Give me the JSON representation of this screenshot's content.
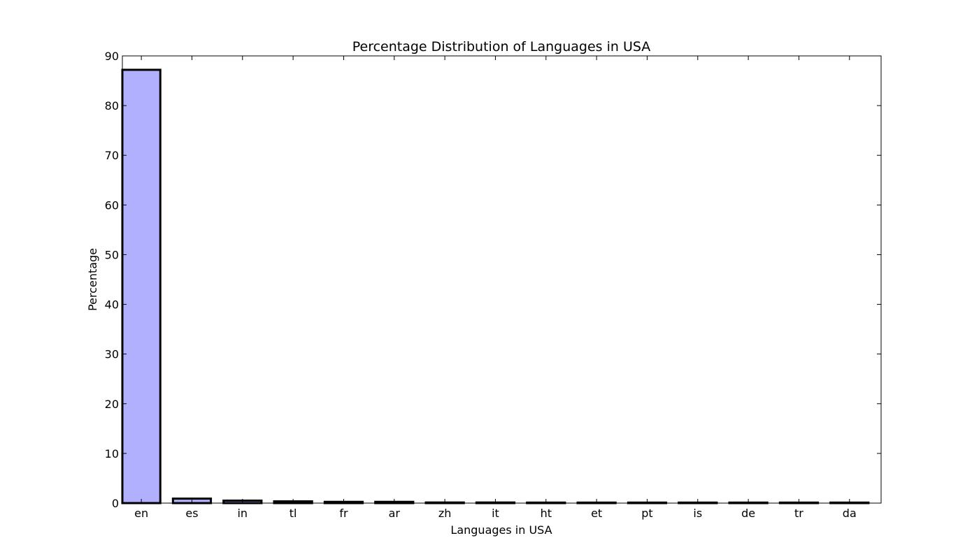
{
  "chart_data": {
    "type": "bar",
    "title": "Percentage Distribution of Languages in USA",
    "xlabel": "Languages in USA",
    "ylabel": "Percentage",
    "categories": [
      "en",
      "es",
      "in",
      "tl",
      "fr",
      "ar",
      "zh",
      "it",
      "ht",
      "et",
      "pt",
      "is",
      "de",
      "tr",
      "da"
    ],
    "values": [
      87.2,
      0.9,
      0.5,
      0.35,
      0.25,
      0.25,
      0.12,
      0.12,
      0.1,
      0.1,
      0.1,
      0.1,
      0.1,
      0.1,
      0.1
    ],
    "ylim": [
      0,
      90
    ],
    "yticks": [
      0,
      10,
      20,
      30,
      40,
      50,
      60,
      70,
      80,
      90
    ],
    "grid": false,
    "legend": "none",
    "colors": {
      "bar_fill": "#b0b0ff",
      "bar_edge": "#000000",
      "axes": "#000000",
      "background": "#ffffff"
    }
  }
}
